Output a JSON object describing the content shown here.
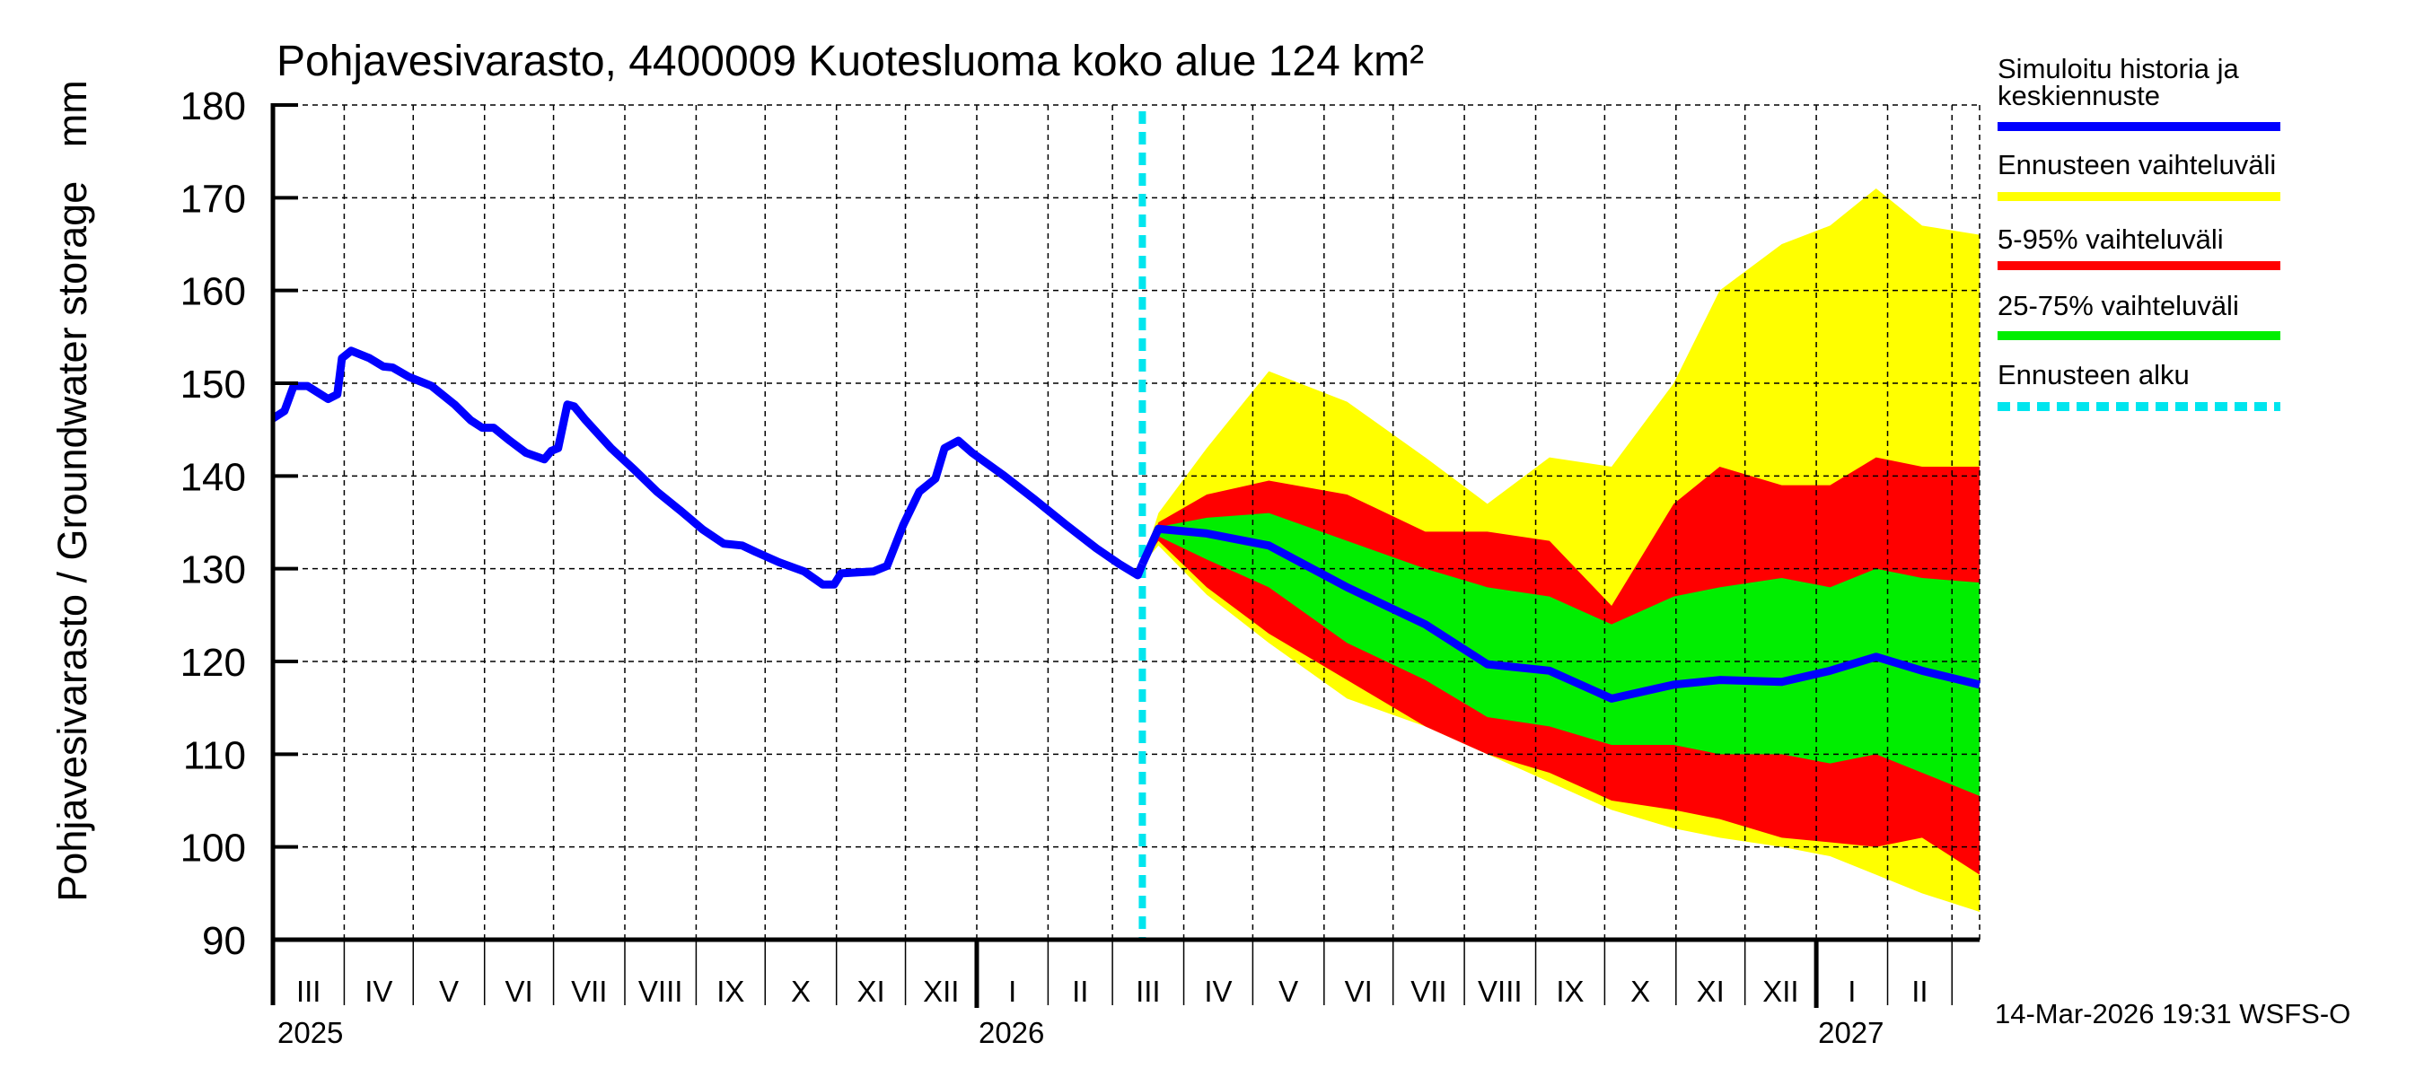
{
  "chart_data": {
    "type": "area",
    "title": "Pohjavesivarasto, 4400009 Kuotesluoma koko alue 124 km²",
    "ylabel": "Pohjavesivarasto / Groundwater storage   mm",
    "ylim": [
      90,
      180
    ],
    "yticks": [
      90,
      100,
      110,
      120,
      130,
      140,
      150,
      160,
      170,
      180
    ],
    "xlim": [
      "2025-03-01",
      "2027-03-13"
    ],
    "grid": true,
    "legend_position": "right",
    "month_labels": [
      "I",
      "II",
      "III",
      "IV",
      "V",
      "VI",
      "VII",
      "VIII",
      "IX",
      "X",
      "XI",
      "XII"
    ],
    "year_labels": [
      "2025",
      "2026",
      "2027"
    ],
    "forecast_start": "2026-03-14",
    "timestamp": "14-Mar-2026 19:31 WSFS-O",
    "colors": {
      "history": "#0000ff",
      "range": "#ffff00",
      "p5_95": "#ff0000",
      "p25_75": "#00ee00",
      "forecast_start": "#00e5ee"
    },
    "legend": [
      {
        "label": "Simuloitu historia ja",
        "label2": "keskiennuste",
        "color": "#0000ff",
        "style": "solid"
      },
      {
        "label": "Ennusteen vaihteluväli",
        "color": "#ffff00",
        "style": "solid"
      },
      {
        "label": "5-95% vaihteluväli",
        "color": "#ff0000",
        "style": "solid"
      },
      {
        "label": "25-75% vaihteluväli",
        "color": "#00ee00",
        "style": "solid"
      },
      {
        "label": "Ennusteen alku",
        "color": "#00e5ee",
        "style": "dashed"
      }
    ],
    "history": {
      "x": [
        "2025-03-01",
        "2025-03-06",
        "2025-03-10",
        "2025-03-16",
        "2025-03-25",
        "2025-03-29",
        "2025-03-31",
        "2025-04-04",
        "2025-04-12",
        "2025-04-18",
        "2025-04-22",
        "2025-04-29",
        "2025-05-09",
        "2025-05-19",
        "2025-05-26",
        "2025-05-31",
        "2025-06-05",
        "2025-06-12",
        "2025-06-19",
        "2025-06-27",
        "2025-06-30",
        "2025-07-03",
        "2025-07-07",
        "2025-07-10",
        "2025-07-15",
        "2025-07-26",
        "2025-08-05",
        "2025-08-15",
        "2025-08-25",
        "2025-09-04",
        "2025-09-13",
        "2025-09-21",
        "2025-09-27",
        "2025-10-07",
        "2025-10-18",
        "2025-10-26",
        "2025-10-31",
        "2025-11-03",
        "2025-11-17",
        "2025-11-23",
        "2025-11-30",
        "2025-12-07",
        "2025-12-14",
        "2025-12-18",
        "2025-12-24",
        "2025-12-30",
        "2026-01-13",
        "2026-01-26",
        "2026-02-09",
        "2026-02-22",
        "2026-03-04",
        "2026-03-12",
        "2026-03-14"
      ],
      "y": [
        146.2,
        147.0,
        149.7,
        149.7,
        148.3,
        148.8,
        152.7,
        153.5,
        152.7,
        151.8,
        151.7,
        150.7,
        149.7,
        147.7,
        146.0,
        145.2,
        145.2,
        143.8,
        142.5,
        141.8,
        142.7,
        143.0,
        147.7,
        147.5,
        146.0,
        143.0,
        140.7,
        138.3,
        136.3,
        134.2,
        132.7,
        132.5,
        131.8,
        130.7,
        129.7,
        128.3,
        128.3,
        129.5,
        129.7,
        130.3,
        134.7,
        138.3,
        139.7,
        143.0,
        143.8,
        142.5,
        140.0,
        137.5,
        134.7,
        132.2,
        130.5,
        129.3,
        130.5
      ]
    },
    "forecast": {
      "x": [
        "2026-03-14",
        "2026-03-21",
        "2026-04-11",
        "2026-05-08",
        "2026-06-11",
        "2026-07-15",
        "2026-08-11",
        "2026-09-07",
        "2026-10-04",
        "2026-10-31",
        "2026-11-20",
        "2026-12-17",
        "2027-01-07",
        "2027-01-27",
        "2027-02-16",
        "2027-03-13"
      ],
      "min": [
        130.5,
        132.5,
        127.2,
        122,
        116,
        113,
        110,
        107,
        104,
        102,
        101,
        100,
        99,
        97,
        95,
        93
      ],
      "p5": [
        130.5,
        133,
        128,
        123,
        118,
        113,
        110,
        108,
        105,
        104,
        103,
        101,
        100.5,
        100,
        101,
        97
      ],
      "p25": [
        130.5,
        133.5,
        131,
        128,
        122,
        118,
        114,
        113,
        111,
        111,
        110,
        110,
        109,
        110,
        108,
        105.5
      ],
      "median": [
        130.5,
        134.3,
        133.8,
        132.5,
        128,
        124,
        119.7,
        119,
        116,
        117.5,
        118,
        117.8,
        119,
        120.5,
        119,
        117.5
      ],
      "p75": [
        130.5,
        134.5,
        135.5,
        136,
        133,
        130,
        128,
        127,
        124,
        127,
        128,
        129,
        128,
        130,
        129,
        128.5
      ],
      "p95": [
        130.5,
        135,
        138,
        139.5,
        138,
        134,
        134,
        133,
        126,
        137,
        141,
        139,
        139,
        142,
        141,
        141
      ],
      "max": [
        130.5,
        136,
        143,
        151.3,
        148,
        142,
        137,
        142,
        141,
        150,
        160,
        165,
        167,
        171,
        167,
        166
      ]
    }
  }
}
